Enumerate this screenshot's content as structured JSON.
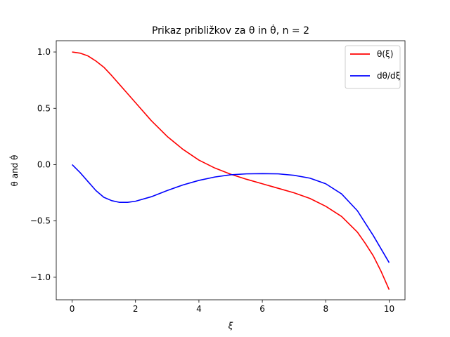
{
  "chart_data": {
    "type": "line",
    "title": "Prikaz približkov za θ in θ̇, n = 2",
    "xlabel": "ξ",
    "ylabel": "θ and θ̇",
    "xlim": [
      -0.5,
      10.5
    ],
    "ylim": [
      -1.2,
      1.1
    ],
    "xticks": [
      0,
      2,
      4,
      6,
      8,
      10
    ],
    "xtick_labels": [
      "0",
      "2",
      "4",
      "6",
      "8",
      "10"
    ],
    "yticks": [
      -1.0,
      -0.5,
      0.0,
      0.5,
      1.0
    ],
    "ytick_labels": [
      "−1.0",
      "−0.5",
      "0.0",
      "0.5",
      "1.0"
    ],
    "grid": false,
    "legend_position": "upper right",
    "series": [
      {
        "name": "θ(ξ)",
        "color": "#ff0000",
        "x": [
          0,
          0.25,
          0.5,
          0.75,
          1.0,
          1.25,
          1.5,
          1.75,
          2.0,
          2.5,
          3.0,
          3.5,
          4.0,
          4.5,
          5.0,
          5.5,
          6.0,
          6.5,
          7.0,
          7.5,
          8.0,
          8.5,
          9.0,
          9.25,
          9.5,
          9.75,
          10.0
        ],
        "y": [
          1.0,
          0.99,
          0.965,
          0.92,
          0.865,
          0.79,
          0.71,
          0.63,
          0.55,
          0.39,
          0.25,
          0.135,
          0.04,
          -0.03,
          -0.085,
          -0.13,
          -0.17,
          -0.21,
          -0.25,
          -0.3,
          -0.37,
          -0.46,
          -0.6,
          -0.7,
          -0.81,
          -0.95,
          -1.11
        ]
      },
      {
        "name": "dθ/dξ",
        "color": "#0000ff",
        "x": [
          0,
          0.25,
          0.5,
          0.75,
          1.0,
          1.25,
          1.5,
          1.75,
          2.0,
          2.5,
          3.0,
          3.5,
          4.0,
          4.5,
          5.0,
          5.5,
          6.0,
          6.5,
          7.0,
          7.5,
          8.0,
          8.5,
          9.0,
          9.25,
          9.5,
          9.75,
          10.0
        ],
        "y": [
          0.0,
          -0.07,
          -0.15,
          -0.23,
          -0.29,
          -0.32,
          -0.335,
          -0.335,
          -0.325,
          -0.285,
          -0.23,
          -0.18,
          -0.14,
          -0.11,
          -0.09,
          -0.082,
          -0.08,
          -0.082,
          -0.095,
          -0.12,
          -0.17,
          -0.26,
          -0.41,
          -0.52,
          -0.63,
          -0.75,
          -0.87
        ]
      }
    ]
  }
}
